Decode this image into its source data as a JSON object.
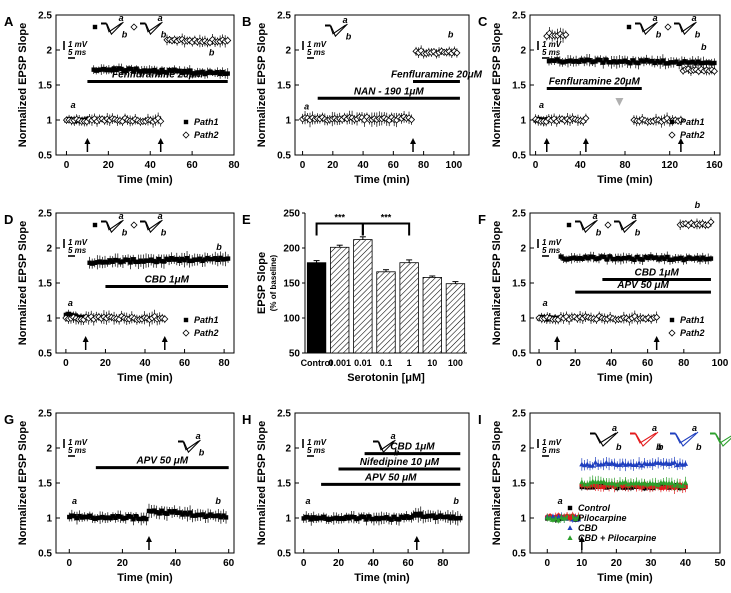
{
  "chart_data": [
    {
      "panel": "A",
      "type": "scatter",
      "xlabel": "Time (min)",
      "ylabel": "Normalized EPSP Slope",
      "xlim": [
        -5,
        80
      ],
      "xticks": [
        0,
        20,
        40,
        60,
        80
      ],
      "ylim": [
        0.5,
        2.5
      ],
      "yticks": [
        0.5,
        1,
        1.5,
        2,
        2.5
      ],
      "series": [
        {
          "name": "Path1",
          "marker": "filled-square",
          "segments": [
            {
              "x": [
                0,
                10
              ],
              "y": [
                1.0,
                1.0
              ],
              "err": 0.05
            },
            {
              "x": [
                13,
                77
              ],
              "y": [
                1.73,
                1.67
              ],
              "err": 0.06
            }
          ]
        },
        {
          "name": "Path2",
          "marker": "open-diamond",
          "segments": [
            {
              "x": [
                0,
                45
              ],
              "y": [
                1.0,
                1.0
              ],
              "err": 0.07
            },
            {
              "x": [
                48,
                77
              ],
              "y": [
                2.15,
                2.12
              ],
              "err": 0.07
            }
          ]
        }
      ],
      "bars": [
        {
          "label": "Fenfluramine 20μM",
          "x": [
            10,
            77
          ],
          "y": 1.55
        }
      ],
      "arrows": [
        10,
        45
      ],
      "trace_labels": [
        {
          "text": "a",
          "x": 2,
          "y": 1.17
        },
        {
          "text": "b",
          "x": 68,
          "y": 1.92
        }
      ],
      "scale": {
        "mv": "1 mV",
        "ms": "5 ms"
      },
      "inset_labels": [
        "a",
        "b",
        "a",
        "b"
      ],
      "legend": [
        "Path1",
        "Path2"
      ]
    },
    {
      "panel": "B",
      "type": "scatter",
      "xlabel": "Time (min)",
      "ylabel": "Normalized EPSP Slope",
      "xlim": [
        -5,
        110
      ],
      "xticks": [
        0,
        20,
        40,
        60,
        80,
        100
      ],
      "ylim": [
        0.5,
        2.5
      ],
      "yticks": [
        0.5,
        1,
        1.5,
        2,
        2.5
      ],
      "series": [
        {
          "name": "Path",
          "marker": "open-diamond",
          "segments": [
            {
              "x": [
                0,
                72
              ],
              "y": [
                1.02,
                1.02
              ],
              "err": 0.08
            },
            {
              "x": [
                75,
                102
              ],
              "y": [
                1.97,
                1.97
              ],
              "err": 0.06
            }
          ]
        }
      ],
      "bars": [
        {
          "label": "Fenfluramine 20μM",
          "x": [
            73,
            104
          ],
          "y": 1.55
        },
        {
          "label": "NAN - 190 1μM",
          "x": [
            10,
            104
          ],
          "y": 1.31
        }
      ],
      "arrows": [
        73
      ],
      "trace_labels": [
        {
          "text": "a",
          "x": 1,
          "y": 1.15
        },
        {
          "text": "b",
          "x": 96,
          "y": 2.18
        }
      ],
      "scale": {
        "mv": "1 mV",
        "ms": "5 ms"
      },
      "inset_labels": [
        "a",
        "b"
      ]
    },
    {
      "panel": "C",
      "type": "scatter",
      "xlabel": "Time (min)",
      "ylabel": "Normalized EPSP Slope",
      "xlim": [
        -5,
        165
      ],
      "xticks": [
        0,
        40,
        80,
        120,
        160
      ],
      "ylim": [
        0.5,
        2.5
      ],
      "yticks": [
        0.5,
        1,
        1.5,
        2,
        2.5
      ],
      "series": [
        {
          "name": "Path1",
          "marker": "filled-square",
          "segments": [
            {
              "x": [
                0,
                10
              ],
              "y": [
                1.0,
                1.0
              ],
              "err": 0.05
            },
            {
              "x": [
                12,
                160
              ],
              "y": [
                1.85,
                1.82
              ],
              "err": 0.07
            }
          ]
        },
        {
          "name": "Path2",
          "marker": "open-diamond",
          "segments": [
            {
              "x": [
                0,
                45
              ],
              "y": [
                1.0,
                1.0
              ],
              "err": 0.07
            },
            {
              "x": [
                88,
                130
              ],
              "y": [
                1.0,
                1.0
              ],
              "err": 0.07
            },
            {
              "x": [
                132,
                160
              ],
              "y": [
                1.72,
                1.72
              ],
              "err": 0.06
            }
          ]
        },
        {
          "name": "Inset",
          "marker": "open-diamond",
          "segments": [
            {
              "x": [
                10,
                27
              ],
              "y": [
                2.22,
                2.2
              ],
              "err": 0.08
            }
          ]
        }
      ],
      "bars": [
        {
          "label": "Fenfluramine 20μM",
          "x": [
            10,
            95
          ],
          "y": 1.45
        }
      ],
      "arrows": [
        10,
        45,
        130
      ],
      "gray_arrow": 75,
      "trace_labels": [
        {
          "text": "a",
          "x": 3,
          "y": 1.17
        },
        {
          "text": "b",
          "x": 148,
          "y": 2.0
        }
      ],
      "scale": {
        "mv": "1 mV",
        "ms": "5 ms"
      },
      "inset_labels": [
        "a",
        "b",
        "a",
        "b"
      ],
      "legend": [
        "Path1",
        "Path2"
      ]
    },
    {
      "panel": "D",
      "type": "scatter",
      "xlabel": "Time (min)",
      "ylabel": "Normalized EPSP Slope",
      "xlim": [
        -5,
        85
      ],
      "xticks": [
        0,
        20,
        40,
        60,
        80
      ],
      "ylim": [
        0.5,
        2.5
      ],
      "yticks": [
        0.5,
        1,
        1.5,
        2,
        2.5
      ],
      "series": [
        {
          "name": "Path1",
          "marker": "filled-square",
          "segments": [
            {
              "x": [
                0,
                10
              ],
              "y": [
                1.05,
                1.0
              ],
              "err": 0.05
            },
            {
              "x": [
                12,
                82
              ],
              "y": [
                1.8,
                1.85
              ],
              "err": 0.08
            }
          ]
        },
        {
          "name": "Path2",
          "marker": "open-diamond",
          "segments": [
            {
              "x": [
                0,
                50
              ],
              "y": [
                1.0,
                1.0
              ],
              "err": 0.08
            }
          ]
        }
      ],
      "bars": [
        {
          "label": "CBD 1μM",
          "x": [
            20,
            82
          ],
          "y": 1.45
        }
      ],
      "arrows": [
        10,
        50
      ],
      "trace_labels": [
        {
          "text": "a",
          "x": 1,
          "y": 1.17
        },
        {
          "text": "b",
          "x": 76,
          "y": 1.97
        }
      ],
      "scale": {
        "mv": "1 mV",
        "ms": "5 ms"
      },
      "inset_labels": [
        "a",
        "b",
        "a",
        "b"
      ],
      "legend": [
        "Path1",
        "Path2"
      ]
    },
    {
      "panel": "E",
      "type": "bar",
      "xlabel": "Serotonin [μM]",
      "ylabel": "EPSP Slope",
      "ylabel2": "(% of baseline)",
      "categories": [
        "Control",
        "0.001",
        "0.01",
        "0.1",
        "1",
        "10",
        "100"
      ],
      "values": [
        179,
        201,
        212,
        166,
        179,
        158,
        149
      ],
      "errors": [
        3,
        3,
        4,
        3,
        4,
        2,
        3
      ],
      "ylim": [
        50,
        250
      ],
      "yticks": [
        50,
        100,
        150,
        200,
        250
      ],
      "significance": [
        {
          "from": 0,
          "to": 2,
          "label": "***"
        },
        {
          "from": 2,
          "to": 4,
          "label": "***"
        }
      ]
    },
    {
      "panel": "F",
      "type": "scatter",
      "xlabel": "Time (min)",
      "ylabel": "Normalized EPSP Slope",
      "xlim": [
        -5,
        100
      ],
      "xticks": [
        0,
        20,
        40,
        60,
        80,
        100
      ],
      "ylim": [
        0.5,
        2.5
      ],
      "yticks": [
        0.5,
        1,
        1.5,
        2,
        2.5
      ],
      "series": [
        {
          "name": "Path1",
          "marker": "filled-square",
          "segments": [
            {
              "x": [
                0,
                10
              ],
              "y": [
                1.0,
                1.0
              ],
              "err": 0.05
            },
            {
              "x": [
                12,
                95
              ],
              "y": [
                1.86,
                1.85
              ],
              "err": 0.06
            }
          ]
        },
        {
          "name": "Path2",
          "marker": "open-diamond",
          "segments": [
            {
              "x": [
                0,
                65
              ],
              "y": [
                1.0,
                1.0
              ],
              "err": 0.07
            },
            {
              "x": [
                78,
                95
              ],
              "y": [
                2.35,
                2.35
              ],
              "err": 0.06
            }
          ]
        }
      ],
      "bars": [
        {
          "label": "CBD 1μM",
          "x": [
            35,
            95
          ],
          "y": 1.55
        },
        {
          "label": "APV 50 μM",
          "x": [
            20,
            95
          ],
          "y": 1.37
        }
      ],
      "arrows": [
        10,
        65
      ],
      "trace_labels": [
        {
          "text": "a",
          "x": 2,
          "y": 1.17
        },
        {
          "text": "b",
          "x": 86,
          "y": 2.57
        }
      ],
      "scale": {
        "mv": "1 mV",
        "ms": "5 ms"
      },
      "inset_labels": [
        "a",
        "b",
        "a",
        "b"
      ],
      "legend": [
        "Path1",
        "Path2"
      ]
    },
    {
      "panel": "G",
      "type": "scatter",
      "xlabel": "Time (min)",
      "ylabel": "Normalized EPSP Slope",
      "xlim": [
        -5,
        62
      ],
      "xticks": [
        0,
        20,
        40,
        60
      ],
      "ylim": [
        0.5,
        2.5
      ],
      "yticks": [
        0.5,
        1,
        1.5,
        2,
        2.5
      ],
      "series": [
        {
          "name": "Path",
          "marker": "filled-square",
          "segments": [
            {
              "x": [
                0,
                29
              ],
              "y": [
                1.02,
                1.0
              ],
              "err": 0.07
            },
            {
              "x": [
                30,
                59
              ],
              "y": [
                1.1,
                1.02
              ],
              "err": 0.08
            }
          ]
        }
      ],
      "bars": [
        {
          "label": "APV 50 μM",
          "x": [
            10,
            60
          ],
          "y": 1.72
        }
      ],
      "arrows": [
        30
      ],
      "trace_labels": [
        {
          "text": "a",
          "x": 1,
          "y": 1.2
        },
        {
          "text": "b",
          "x": 55,
          "y": 1.2
        }
      ],
      "scale": {
        "mv": "1 mV",
        "ms": "5 ms"
      },
      "inset_labels": [
        "a",
        "b"
      ]
    },
    {
      "panel": "H",
      "type": "scatter",
      "xlabel": "Time (min)",
      "ylabel": "Normalized EPSP Slope",
      "xlim": [
        -5,
        95
      ],
      "xticks": [
        0,
        20,
        40,
        60,
        80
      ],
      "ylim": [
        0.5,
        2.5
      ],
      "yticks": [
        0.5,
        1,
        1.5,
        2,
        2.5
      ],
      "series": [
        {
          "name": "Path",
          "marker": "filled-square",
          "segments": [
            {
              "x": [
                0,
                62
              ],
              "y": [
                1.0,
                1.0
              ],
              "err": 0.07
            },
            {
              "x": [
                63,
                90
              ],
              "y": [
                1.05,
                1.0
              ],
              "err": 0.08
            }
          ]
        }
      ],
      "bars": [
        {
          "label": "CBD 1μM",
          "x": [
            35,
            90
          ],
          "y": 1.92
        },
        {
          "label": "Nifedipine 10 μM",
          "x": [
            20,
            90
          ],
          "y": 1.7
        },
        {
          "label": "APV 50 μM",
          "x": [
            10,
            90
          ],
          "y": 1.48
        }
      ],
      "arrows": [
        65
      ],
      "trace_labels": [
        {
          "text": "a",
          "x": 1,
          "y": 1.2
        },
        {
          "text": "b",
          "x": 86,
          "y": 1.2
        }
      ],
      "scale": {
        "mv": "1 mV",
        "ms": "5 ms"
      },
      "inset_labels": [
        "a",
        "b"
      ]
    },
    {
      "panel": "I",
      "type": "scatter",
      "xlabel": "Time (min)",
      "ylabel": "Normalized EPSP Slope",
      "xlim": [
        -5,
        50
      ],
      "xticks": [
        0,
        10,
        20,
        30,
        40,
        50
      ],
      "ylim": [
        0.5,
        2.5
      ],
      "yticks": [
        0.5,
        1,
        1.5,
        2,
        2.5
      ],
      "series": [
        {
          "name": "Control",
          "marker": "filled-square",
          "color": "#000000",
          "segments": [
            {
              "x": [
                0,
                9
              ],
              "y": [
                1.0,
                1.0
              ],
              "err": 0.04
            },
            {
              "x": [
                10,
                40
              ],
              "y": [
                1.45,
                1.45
              ],
              "err": 0.04
            }
          ]
        },
        {
          "name": "Pilocarpine",
          "marker": "filled-circle",
          "color": "#e31a1c",
          "segments": [
            {
              "x": [
                0,
                9
              ],
              "y": [
                1.02,
                1.02
              ],
              "err": 0.05
            },
            {
              "x": [
                10,
                40
              ],
              "y": [
                1.47,
                1.45
              ],
              "err": 0.07
            }
          ]
        },
        {
          "name": "CBD",
          "marker": "filled-triangle",
          "color": "#1f3fbf",
          "segments": [
            {
              "x": [
                0,
                9
              ],
              "y": [
                1.02,
                1.0
              ],
              "err": 0.05
            },
            {
              "x": [
                10,
                40
              ],
              "y": [
                1.77,
                1.77
              ],
              "err": 0.07
            }
          ]
        },
        {
          "name": "CBD + Pilocarpine",
          "marker": "filled-triangle",
          "color": "#2ca02c",
          "segments": [
            {
              "x": [
                0,
                9
              ],
              "y": [
                0.98,
                1.0
              ],
              "err": 0.05
            },
            {
              "x": [
                10,
                40
              ],
              "y": [
                1.5,
                1.48
              ],
              "err": 0.07
            }
          ]
        }
      ],
      "bars": [],
      "arrows": [
        10
      ],
      "trace_labels": [
        {
          "text": "a",
          "x": 3,
          "y": 1.2
        },
        {
          "text": "b",
          "x": 32,
          "y": 1.97
        }
      ],
      "scale": {
        "mv": "1 mV",
        "ms": "5 ms"
      },
      "inset_labels": [
        "a",
        "b",
        "a",
        "b",
        "a",
        "b",
        "a",
        "b"
      ],
      "inset_colors": [
        "#000000",
        "#e31a1c",
        "#1f3fbf",
        "#2ca02c"
      ],
      "legend": [
        "Control",
        "Pilocarpine",
        "CBD",
        "CBD + Pilocarpine"
      ]
    }
  ]
}
